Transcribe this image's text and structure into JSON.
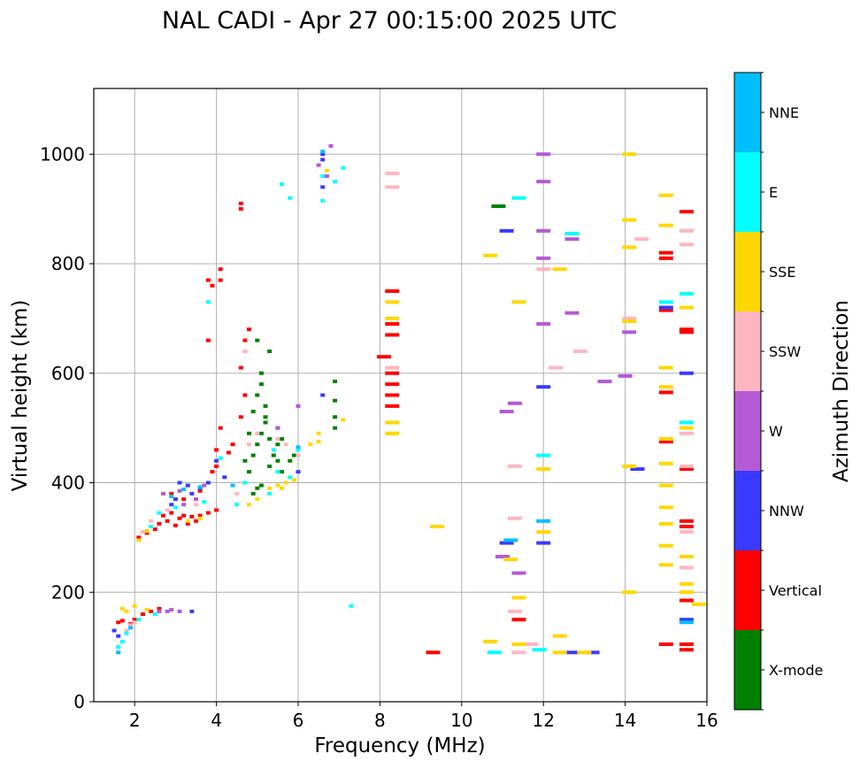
{
  "chart_data": {
    "type": "scatter",
    "title": "NAL CADI - Apr 27 00:15:00 2025 UTC",
    "xlabel": "Frequency (MHz)",
    "ylabel": "Virtual height (km)",
    "xlim": [
      1,
      16
    ],
    "ylim": [
      0,
      1120
    ],
    "x_ticks": [
      2,
      4,
      6,
      8,
      10,
      12,
      14,
      16
    ],
    "y_ticks": [
      0,
      200,
      400,
      600,
      800,
      1000
    ],
    "grid": true,
    "colorbar": {
      "label": "Azimuth Direction",
      "categories": [
        {
          "name": "X-mode",
          "color": "#008000"
        },
        {
          "name": "Vertical",
          "color": "#ff0000"
        },
        {
          "name": "NNW",
          "color": "#3a3aff"
        },
        {
          "name": "W",
          "color": "#b45ad4"
        },
        {
          "name": "SSW",
          "color": "#ffb6c1"
        },
        {
          "name": "SSE",
          "color": "#ffd700"
        },
        {
          "name": "E",
          "color": "#00ffff"
        },
        {
          "name": "NNE",
          "color": "#00bfff"
        }
      ]
    },
    "series": [
      {
        "name": "Vertical",
        "points": [
          [
            2.1,
            300
          ],
          [
            2.3,
            308
          ],
          [
            2.5,
            315
          ],
          [
            2.6,
            325
          ],
          [
            2.8,
            330
          ],
          [
            3.0,
            322
          ],
          [
            3.1,
            335
          ],
          [
            3.3,
            325
          ],
          [
            3.5,
            330
          ],
          [
            3.6,
            340
          ],
          [
            3.8,
            345
          ],
          [
            4.0,
            350
          ],
          [
            2.7,
            340
          ],
          [
            2.9,
            345
          ],
          [
            3.2,
            340
          ],
          [
            3.4,
            338
          ],
          [
            1.6,
            145
          ],
          [
            1.7,
            148
          ],
          [
            1.9,
            142
          ],
          [
            2.0,
            150
          ],
          [
            2.2,
            160
          ],
          [
            2.4,
            165
          ],
          [
            2.6,
            170
          ],
          [
            2.9,
            380
          ],
          [
            3.2,
            370
          ],
          [
            3.6,
            385
          ],
          [
            3.9,
            420
          ],
          [
            4.0,
            430
          ],
          [
            4.1,
            500
          ],
          [
            4.0,
            460
          ],
          [
            4.3,
            455
          ],
          [
            4.4,
            470
          ],
          [
            4.6,
            520
          ],
          [
            4.7,
            560
          ],
          [
            4.6,
            610
          ],
          [
            4.7,
            640
          ],
          [
            4.8,
            680
          ],
          [
            3.8,
            770
          ],
          [
            4.1,
            790
          ],
          [
            3.9,
            760
          ],
          [
            4.1,
            770
          ],
          [
            4.6,
            900
          ],
          [
            4.6,
            910
          ],
          [
            3.8,
            660
          ],
          [
            4.7,
            660
          ],
          [
            8.3,
            670
          ],
          [
            8.3,
            690
          ],
          [
            8.3,
            580
          ],
          [
            8.3,
            560
          ],
          [
            8.3,
            600
          ],
          [
            8.3,
            540
          ],
          [
            8.3,
            750
          ],
          [
            8.1,
            630
          ],
          [
            9.3,
            90
          ],
          [
            15.0,
            820
          ],
          [
            15.0,
            810
          ],
          [
            15.5,
            895
          ],
          [
            15.0,
            715
          ],
          [
            15.5,
            680
          ],
          [
            15.5,
            675
          ],
          [
            15.0,
            565
          ],
          [
            15.5,
            425
          ],
          [
            15.0,
            475
          ],
          [
            15.5,
            330
          ],
          [
            15.5,
            320
          ],
          [
            15.5,
            185
          ],
          [
            15.0,
            105
          ],
          [
            15.5,
            105
          ],
          [
            15.5,
            95
          ],
          [
            11.4,
            150
          ]
        ]
      },
      {
        "name": "X-mode",
        "points": [
          [
            4.9,
            380
          ],
          [
            5.0,
            390
          ],
          [
            5.1,
            395
          ],
          [
            4.8,
            420
          ],
          [
            4.9,
            450
          ],
          [
            5.0,
            470
          ],
          [
            5.1,
            490
          ],
          [
            5.2,
            510
          ],
          [
            5.3,
            430
          ],
          [
            5.4,
            450
          ],
          [
            5.5,
            440
          ],
          [
            5.6,
            420
          ],
          [
            5.0,
            560
          ],
          [
            5.1,
            600
          ],
          [
            5.2,
            540
          ],
          [
            5.3,
            640
          ],
          [
            5.0,
            660
          ],
          [
            5.1,
            580
          ],
          [
            5.3,
            480
          ],
          [
            5.5,
            470
          ],
          [
            4.7,
            440
          ],
          [
            4.8,
            490
          ],
          [
            5.5,
            500
          ],
          [
            5.6,
            480
          ],
          [
            5.8,
            440
          ],
          [
            5.9,
            450
          ],
          [
            6.9,
            585
          ],
          [
            6.9,
            550
          ],
          [
            6.9,
            520
          ],
          [
            6.9,
            500
          ],
          [
            10.9,
            905
          ],
          [
            5.2,
            520
          ],
          [
            4.9,
            530
          ]
        ]
      },
      {
        "name": "NNW",
        "points": [
          [
            2.9,
            360
          ],
          [
            3.0,
            370
          ],
          [
            3.1,
            400
          ],
          [
            3.3,
            395
          ],
          [
            3.6,
            390
          ],
          [
            3.4,
            380
          ],
          [
            3.8,
            400
          ],
          [
            4.0,
            440
          ],
          [
            4.2,
            410
          ],
          [
            6.0,
            420
          ],
          [
            6.6,
            1000
          ],
          [
            6.6,
            990
          ],
          [
            6.6,
            940
          ],
          [
            6.6,
            560
          ],
          [
            1.5,
            130
          ],
          [
            1.6,
            120
          ],
          [
            3.4,
            165
          ],
          [
            15.0,
            720
          ],
          [
            15.5,
            600
          ],
          [
            14.3,
            425
          ],
          [
            12.7,
            90
          ],
          [
            13.2,
            90
          ],
          [
            15.5,
            150
          ],
          [
            12.0,
            575
          ],
          [
            12.0,
            290
          ],
          [
            11.1,
            860
          ],
          [
            11.1,
            290
          ]
        ]
      },
      {
        "name": "W",
        "points": [
          [
            2.7,
            380
          ],
          [
            3.1,
            385
          ],
          [
            3.2,
            360
          ],
          [
            3.5,
            370
          ],
          [
            3.7,
            395
          ],
          [
            2.6,
            165
          ],
          [
            2.8,
            165
          ],
          [
            2.9,
            168
          ],
          [
            3.1,
            165
          ],
          [
            5.5,
            500
          ],
          [
            6.0,
            540
          ],
          [
            6.5,
            980
          ],
          [
            6.7,
            960
          ],
          [
            6.8,
            1015
          ],
          [
            11.0,
            265
          ],
          [
            11.1,
            530
          ],
          [
            11.3,
            545
          ],
          [
            11.4,
            235
          ],
          [
            12.0,
            1000
          ],
          [
            12.0,
            950
          ],
          [
            12.0,
            860
          ],
          [
            12.0,
            810
          ],
          [
            12.0,
            690
          ],
          [
            12.7,
            845
          ],
          [
            12.7,
            710
          ],
          [
            13.5,
            585
          ],
          [
            14.0,
            595
          ],
          [
            14.1,
            675
          ]
        ]
      },
      {
        "name": "SSW",
        "points": [
          [
            2.2,
            310
          ],
          [
            2.4,
            330
          ],
          [
            2.8,
            350
          ],
          [
            3.5,
            360
          ],
          [
            4.5,
            380
          ],
          [
            4.8,
            470
          ],
          [
            5.0,
            490
          ],
          [
            5.5,
            480
          ],
          [
            5.7,
            470
          ],
          [
            1.8,
            130
          ],
          [
            1.9,
            140
          ],
          [
            2.0,
            145
          ],
          [
            6.0,
            450
          ],
          [
            8.3,
            965
          ],
          [
            8.3,
            940
          ],
          [
            8.3,
            610
          ],
          [
            11.3,
            430
          ],
          [
            11.3,
            335
          ],
          [
            11.3,
            165
          ],
          [
            11.7,
            105
          ],
          [
            12.0,
            790
          ],
          [
            12.3,
            610
          ],
          [
            12.9,
            640
          ],
          [
            14.1,
            700
          ],
          [
            14.4,
            845
          ],
          [
            15.5,
            860
          ],
          [
            15.5,
            835
          ],
          [
            15.5,
            490
          ],
          [
            15.5,
            430
          ],
          [
            15.5,
            310
          ],
          [
            15.5,
            245
          ],
          [
            11.4,
            90
          ],
          [
            4.7,
            640
          ]
        ]
      },
      {
        "name": "SSE",
        "points": [
          [
            2.1,
            295
          ],
          [
            2.3,
            312
          ],
          [
            3.3,
            330
          ],
          [
            3.6,
            335
          ],
          [
            4.8,
            360
          ],
          [
            5.0,
            370
          ],
          [
            5.3,
            390
          ],
          [
            5.5,
            395
          ],
          [
            5.7,
            400
          ],
          [
            5.9,
            405
          ],
          [
            5.6,
            390
          ],
          [
            1.7,
            170
          ],
          [
            1.8,
            165
          ],
          [
            2.0,
            175
          ],
          [
            2.3,
            168
          ],
          [
            6.5,
            490
          ],
          [
            6.5,
            475
          ],
          [
            6.7,
            970
          ],
          [
            7.1,
            515
          ],
          [
            8.3,
            490
          ],
          [
            8.3,
            510
          ],
          [
            8.3,
            700
          ],
          [
            8.3,
            730
          ],
          [
            9.4,
            320
          ],
          [
            10.7,
            815
          ],
          [
            10.7,
            110
          ],
          [
            11.2,
            260
          ],
          [
            11.4,
            730
          ],
          [
            11.4,
            190
          ],
          [
            11.4,
            105
          ],
          [
            12.0,
            425
          ],
          [
            12.0,
            310
          ],
          [
            12.4,
            790
          ],
          [
            12.4,
            120
          ],
          [
            12.4,
            90
          ],
          [
            13.0,
            90
          ],
          [
            14.1,
            1000
          ],
          [
            14.1,
            880
          ],
          [
            14.1,
            830
          ],
          [
            14.1,
            695
          ],
          [
            14.1,
            430
          ],
          [
            14.1,
            200
          ],
          [
            15.0,
            925
          ],
          [
            15.0,
            870
          ],
          [
            15.0,
            610
          ],
          [
            15.0,
            575
          ],
          [
            15.0,
            480
          ],
          [
            15.0,
            435
          ],
          [
            15.0,
            395
          ],
          [
            15.0,
            355
          ],
          [
            15.0,
            325
          ],
          [
            15.0,
            285
          ],
          [
            15.0,
            250
          ],
          [
            15.5,
            720
          ],
          [
            15.5,
            500
          ],
          [
            15.5,
            265
          ],
          [
            15.5,
            215
          ],
          [
            15.5,
            200
          ],
          [
            15.8,
            178
          ],
          [
            6.3,
            470
          ]
        ]
      },
      {
        "name": "E",
        "points": [
          [
            2.4,
            320
          ],
          [
            2.6,
            345
          ],
          [
            3.0,
            355
          ],
          [
            3.7,
            365
          ],
          [
            4.5,
            360
          ],
          [
            4.7,
            400
          ],
          [
            5.3,
            380
          ],
          [
            5.5,
            420
          ],
          [
            5.8,
            410
          ],
          [
            6.0,
            460
          ],
          [
            5.4,
            460
          ],
          [
            1.6,
            100
          ],
          [
            1.7,
            110
          ],
          [
            1.8,
            125
          ],
          [
            2.1,
            150
          ],
          [
            2.5,
            160
          ],
          [
            3.8,
            730
          ],
          [
            5.6,
            945
          ],
          [
            5.8,
            920
          ],
          [
            6.6,
            915
          ],
          [
            6.6,
            960
          ],
          [
            6.9,
            950
          ],
          [
            7.1,
            975
          ],
          [
            7.3,
            175
          ],
          [
            10.8,
            90
          ],
          [
            11.4,
            920
          ],
          [
            11.9,
            95
          ],
          [
            12.0,
            450
          ],
          [
            12.7,
            855
          ],
          [
            15.0,
            730
          ],
          [
            15.5,
            745
          ],
          [
            15.5,
            510
          ],
          [
            4.1,
            445
          ]
        ]
      },
      {
        "name": "NNE",
        "points": [
          [
            2.9,
            375
          ],
          [
            3.2,
            388
          ],
          [
            3.6,
            392
          ],
          [
            4.4,
            395
          ],
          [
            6.0,
            465
          ],
          [
            6.6,
            1005
          ],
          [
            1.6,
            90
          ],
          [
            1.9,
            135
          ],
          [
            12.0,
            330
          ],
          [
            15.5,
            145
          ],
          [
            11.2,
            295
          ]
        ]
      }
    ]
  }
}
